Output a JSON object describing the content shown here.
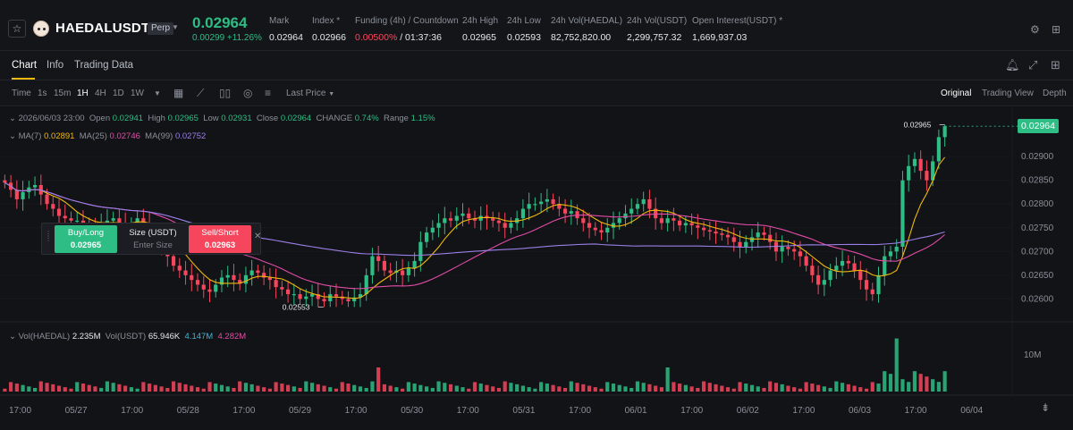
{
  "header": {
    "symbol": "HAEDALUSDT",
    "badge": "Perp",
    "last_price": "0.02964",
    "change": "0.00299 +11.26%",
    "stats": [
      {
        "label": "Mark",
        "value": "0.02964"
      },
      {
        "label": "Index *",
        "value": "0.02966"
      },
      {
        "label": "Funding (4h) / Countdown",
        "value_rate": "0.00500%",
        "value_rest": " / 01:37:36"
      },
      {
        "label": "24h High",
        "value": "0.02965"
      },
      {
        "label": "24h Low",
        "value": "0.02593"
      },
      {
        "label": "24h Vol(HAEDAL)",
        "value": "82,752,820.00"
      },
      {
        "label": "24h Vol(USDT)",
        "value": "2,299,757.32"
      },
      {
        "label": "Open Interest(USDT) *",
        "value": "1,669,937.03"
      }
    ],
    "icons": [
      "star-icon",
      "coin-icon",
      "settings-icon",
      "layout-grid-icon"
    ]
  },
  "tabs": {
    "chart": "Chart",
    "info": "Info",
    "trading_data": "Trading Data"
  },
  "toolbar": {
    "time": "Time",
    "intervals": [
      "1s",
      "15m",
      "1H",
      "4H",
      "1D",
      "1W"
    ],
    "active_interval": "1H",
    "price_type": "Last Price",
    "views": [
      "Original",
      "Trading View",
      "Depth"
    ],
    "active_view": "Original"
  },
  "ohlc": {
    "date": "2026/06/03 23:00",
    "open_label": "Open",
    "open": "0.02941",
    "high_label": "High",
    "high": "0.02965",
    "low_label": "Low",
    "low": "0.02931",
    "close_label": "Close",
    "close": "0.02964",
    "change_label": "CHANGE",
    "change": "0.74%",
    "range_label": "Range",
    "range": "1.15%"
  },
  "ma": {
    "ma7_label": "MA(7)",
    "ma7": "0.02891",
    "ma25_label": "MA(25)",
    "ma25": "0.02746",
    "ma99_label": "MA(99)",
    "ma99": "0.02752"
  },
  "volume": {
    "label": "Vol(HAEDAL)",
    "value": "2.235M",
    "usdt_label": "Vol(USDT)",
    "usdt": "65.946K",
    "v2": "4.147M",
    "v3": "4.282M"
  },
  "order_panel": {
    "buy_label": "Buy/Long",
    "buy_price": "0.02965",
    "size_label": "Size (USDT)",
    "size_placeholder": "Enter Size",
    "sell_label": "Sell/Short",
    "sell_price": "0.02963"
  },
  "price_axis": [
    "0.02900",
    "0.02850",
    "0.02800",
    "0.02750",
    "0.02700",
    "0.02650",
    "0.02600"
  ],
  "volume_axis": [
    "10M"
  ],
  "time_axis": [
    "17:00",
    "05/27",
    "17:00",
    "05/28",
    "17:00",
    "05/29",
    "17:00",
    "05/30",
    "17:00",
    "05/31",
    "17:00",
    "06/01",
    "17:00",
    "06/02",
    "17:00",
    "06/03",
    "17:00",
    "06/04"
  ],
  "current_price_tag": "0.02964",
  "high_marker": "0.02965",
  "low_marker": "0.02553",
  "colors": {
    "up": "#2ebd85",
    "down": "#f6465d",
    "ma7": "#f0b90b",
    "ma25": "#e04ba6",
    "ma99": "#9b7fe8",
    "accent": "#f0b90b"
  },
  "chart_data": {
    "type": "candlestick",
    "interval": "1H",
    "ylim": [
      0.0258,
      0.0297
    ],
    "closes": [
      0.02845,
      0.0283,
      0.0281,
      0.02825,
      0.02835,
      0.0284,
      0.0282,
      0.028,
      0.0279,
      0.02775,
      0.0277,
      0.02765,
      0.02765,
      0.0276,
      0.02755,
      0.02752,
      0.0276,
      0.02765,
      0.0277,
      0.0276,
      0.02752,
      0.0276,
      0.0277,
      0.0276,
      0.02745,
      0.0273,
      0.0271,
      0.0269,
      0.0267,
      0.0266,
      0.0265,
      0.0264,
      0.0263,
      0.0262,
      0.02615,
      0.0263,
      0.02645,
      0.0265,
      0.0264,
      0.02632,
      0.0265,
      0.0266,
      0.02655,
      0.02645,
      0.0264,
      0.02625,
      0.0262,
      0.0261,
      0.0261,
      0.026,
      0.02605,
      0.0261,
      0.026,
      0.02595,
      0.0261,
      0.02605,
      0.026,
      0.02595,
      0.02603,
      0.0261,
      0.0265,
      0.0269,
      0.0268,
      0.0266,
      0.02655,
      0.0266,
      0.0265,
      0.02665,
      0.0268,
      0.0272,
      0.0274,
      0.0275,
      0.0276,
      0.0277,
      0.02765,
      0.02775,
      0.0278,
      0.0277,
      0.02765,
      0.02775,
      0.0277,
      0.02765,
      0.0276,
      0.0275,
      0.0276,
      0.0277,
      0.0279,
      0.028,
      0.028,
      0.02805,
      0.0281,
      0.028,
      0.0279,
      0.0278,
      0.02785,
      0.0277,
      0.0276,
      0.0275,
      0.02745,
      0.0274,
      0.0275,
      0.0276,
      0.0277,
      0.0278,
      0.0279,
      0.028,
      0.0281,
      0.0279,
      0.0277,
      0.0276,
      0.0277,
      0.02765,
      0.02755,
      0.0276,
      0.02755,
      0.0275,
      0.02745,
      0.02742,
      0.02738,
      0.02735,
      0.0273,
      0.0272,
      0.0271,
      0.0272,
      0.0273,
      0.0274,
      0.02735,
      0.0272,
      0.027,
      0.0271,
      0.02705,
      0.027,
      0.0269,
      0.0267,
      0.0265,
      0.0263,
      0.0264,
      0.0266,
      0.0267,
      0.0268,
      0.02675,
      0.0266,
      0.0264,
      0.0262,
      0.0261,
      0.0265,
      0.0269,
      0.027,
      0.0271,
      0.0285,
      0.0288,
      0.02895,
      0.0287,
      0.0285,
      0.0289,
      0.02941,
      0.02964
    ],
    "ma7_last": 0.02891,
    "ma25_last": 0.02746,
    "ma99_last": 0.02752
  }
}
